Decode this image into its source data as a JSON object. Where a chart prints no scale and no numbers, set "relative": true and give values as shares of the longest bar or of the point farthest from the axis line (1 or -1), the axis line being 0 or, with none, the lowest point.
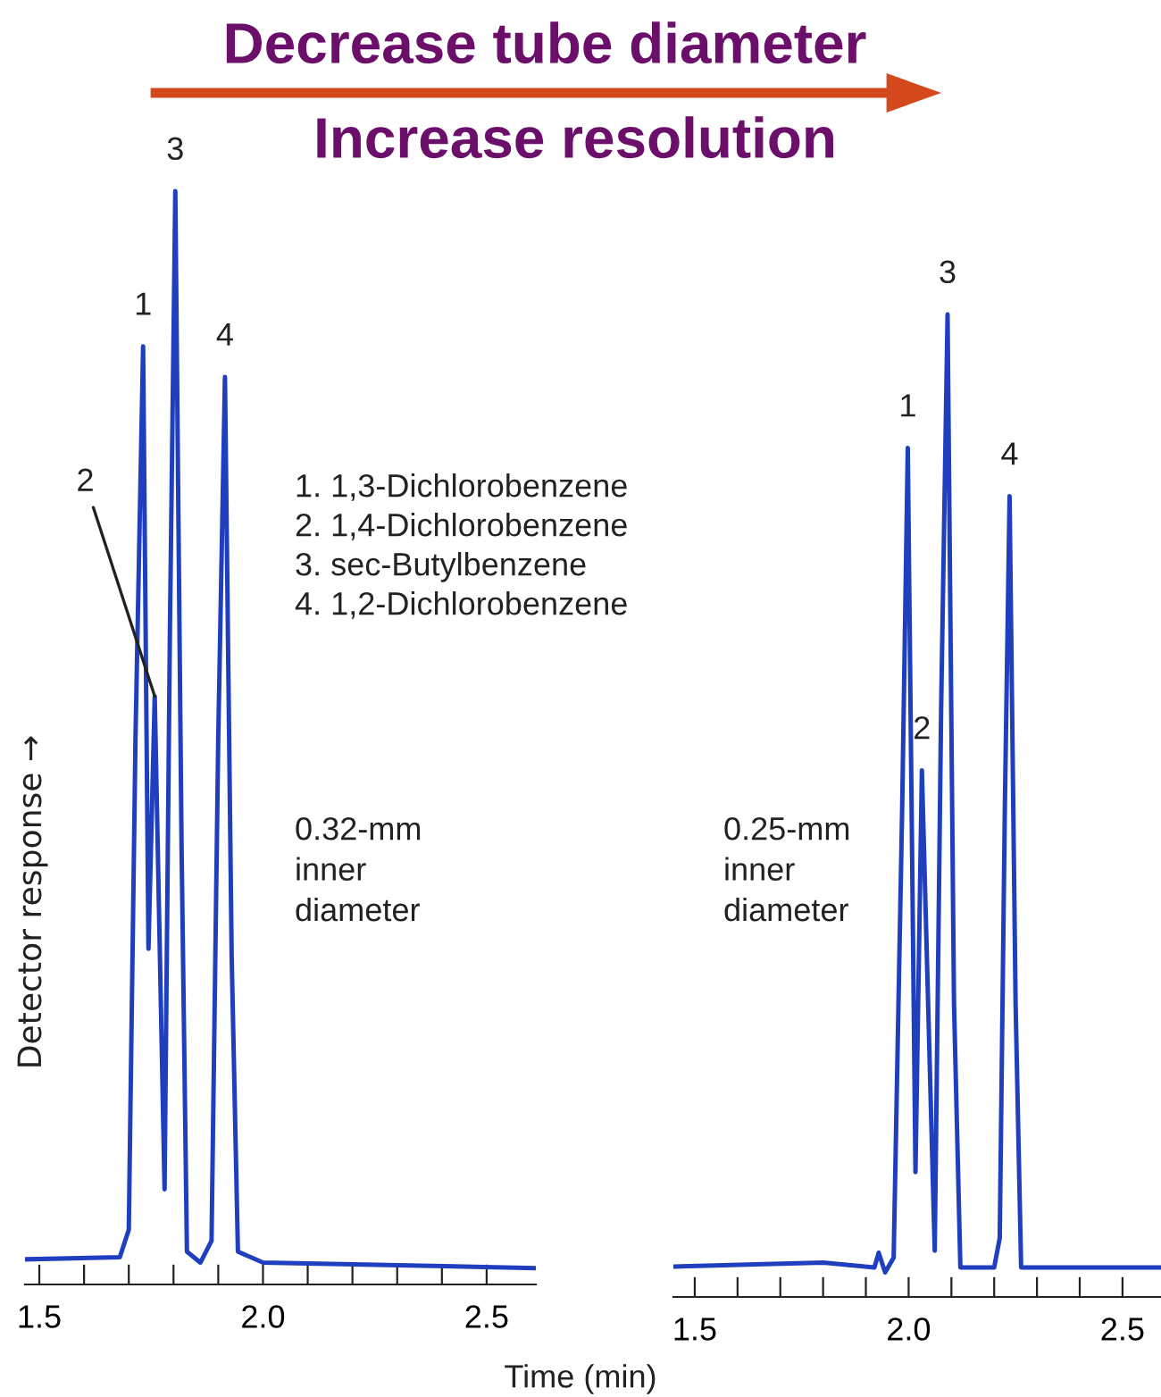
{
  "chart_data": [
    {
      "type": "line",
      "title": "Decrease tube diameter",
      "subtitle": "Increase resolution",
      "ylabel": "Detector response →",
      "xlabel": "Time (min)",
      "relative": true,
      "marker": "none",
      "line_style": "solid",
      "grid": false,
      "legend": false,
      "tick_labels": "x",
      "xlim": [
        1.468,
        2.61
      ],
      "xticks": [
        {
          "value": 1.5,
          "label": "1.5"
        },
        {
          "value": 1.6,
          "label": null
        },
        {
          "value": 1.7,
          "label": null
        },
        {
          "value": 1.8,
          "label": null
        },
        {
          "value": 1.9,
          "label": null
        },
        {
          "value": 2.0,
          "label": "2.0"
        },
        {
          "value": 2.1,
          "label": null
        },
        {
          "value": 2.2,
          "label": null
        },
        {
          "value": 2.3,
          "label": null
        },
        {
          "value": 2.4,
          "label": null
        },
        {
          "value": 2.5,
          "label": "2.5"
        }
      ],
      "series": [
        {
          "color": "#1f3fbf",
          "x": [
            1.47,
            1.68,
            1.7,
            1.715,
            1.732,
            1.744,
            1.758,
            1.78,
            1.792,
            1.804,
            1.818,
            1.83,
            1.86,
            1.885,
            1.9,
            1.915,
            1.93,
            1.944,
            2.0,
            2.61
          ],
          "values": [
            0.023,
            0.025,
            0.05,
            0.5,
            0.858,
            0.307,
            0.538,
            0.087,
            0.6,
            1.0,
            0.4,
            0.03,
            0.02,
            0.04,
            0.5,
            0.83,
            0.3,
            0.03,
            0.02,
            0.015
          ]
        }
      ],
      "annotations": [
        {
          "text": "1",
          "x": 1.732,
          "y": 0.858
        },
        {
          "text": "2",
          "x": 1.758,
          "y": 0.538
        },
        {
          "text": "3",
          "x": 1.804,
          "y": 1.0
        },
        {
          "text": "4",
          "x": 1.915,
          "y": 0.83
        },
        "1. 1,3-Dichlorobenzene",
        "2. 1,4-Dichlorobenzene",
        "3. sec-Butylbenzene",
        "4. 1,2-Dichlorobenzene",
        "0.32-mm\ninner\ndiameter"
      ]
    },
    {
      "type": "line",
      "relative": true,
      "marker": "none",
      "line_style": "solid",
      "grid": false,
      "legend": false,
      "tick_labels": "x",
      "xlim": [
        1.45,
        2.59
      ],
      "xticks": [
        {
          "value": 1.5,
          "label": "1.5"
        },
        {
          "value": 1.6,
          "label": null
        },
        {
          "value": 1.7,
          "label": null
        },
        {
          "value": 1.8,
          "label": null
        },
        {
          "value": 1.9,
          "label": null
        },
        {
          "value": 2.0,
          "label": "2.0"
        },
        {
          "value": 2.1,
          "label": null
        },
        {
          "value": 2.2,
          "label": null
        },
        {
          "value": 2.3,
          "label": null
        },
        {
          "value": 2.4,
          "label": null
        },
        {
          "value": 2.5,
          "label": "2.5"
        }
      ],
      "series": [
        {
          "color": "#1f3fbf",
          "x": [
            1.45,
            1.8,
            1.92,
            1.93,
            1.945,
            1.965,
            1.985,
            1.998,
            2.016,
            2.031,
            2.061,
            2.076,
            2.091,
            2.106,
            2.121,
            2.2,
            2.213,
            2.225,
            2.236,
            2.25,
            2.263,
            2.59
          ],
          "values": [
            0.031,
            0.035,
            0.03,
            0.045,
            0.025,
            0.04,
            0.5,
            0.864,
            0.127,
            0.536,
            0.047,
            0.6,
            1.0,
            0.3,
            0.03,
            0.03,
            0.06,
            0.5,
            0.815,
            0.3,
            0.03,
            0.03
          ]
        }
      ],
      "annotations": [
        {
          "text": "1",
          "x": 1.998,
          "y": 0.864
        },
        {
          "text": "2",
          "x": 2.031,
          "y": 0.536
        },
        {
          "text": "3",
          "x": 2.091,
          "y": 1.0
        },
        {
          "text": "4",
          "x": 2.236,
          "y": 0.815
        },
        "0.25-mm\ninner\ndiameter"
      ]
    }
  ]
}
